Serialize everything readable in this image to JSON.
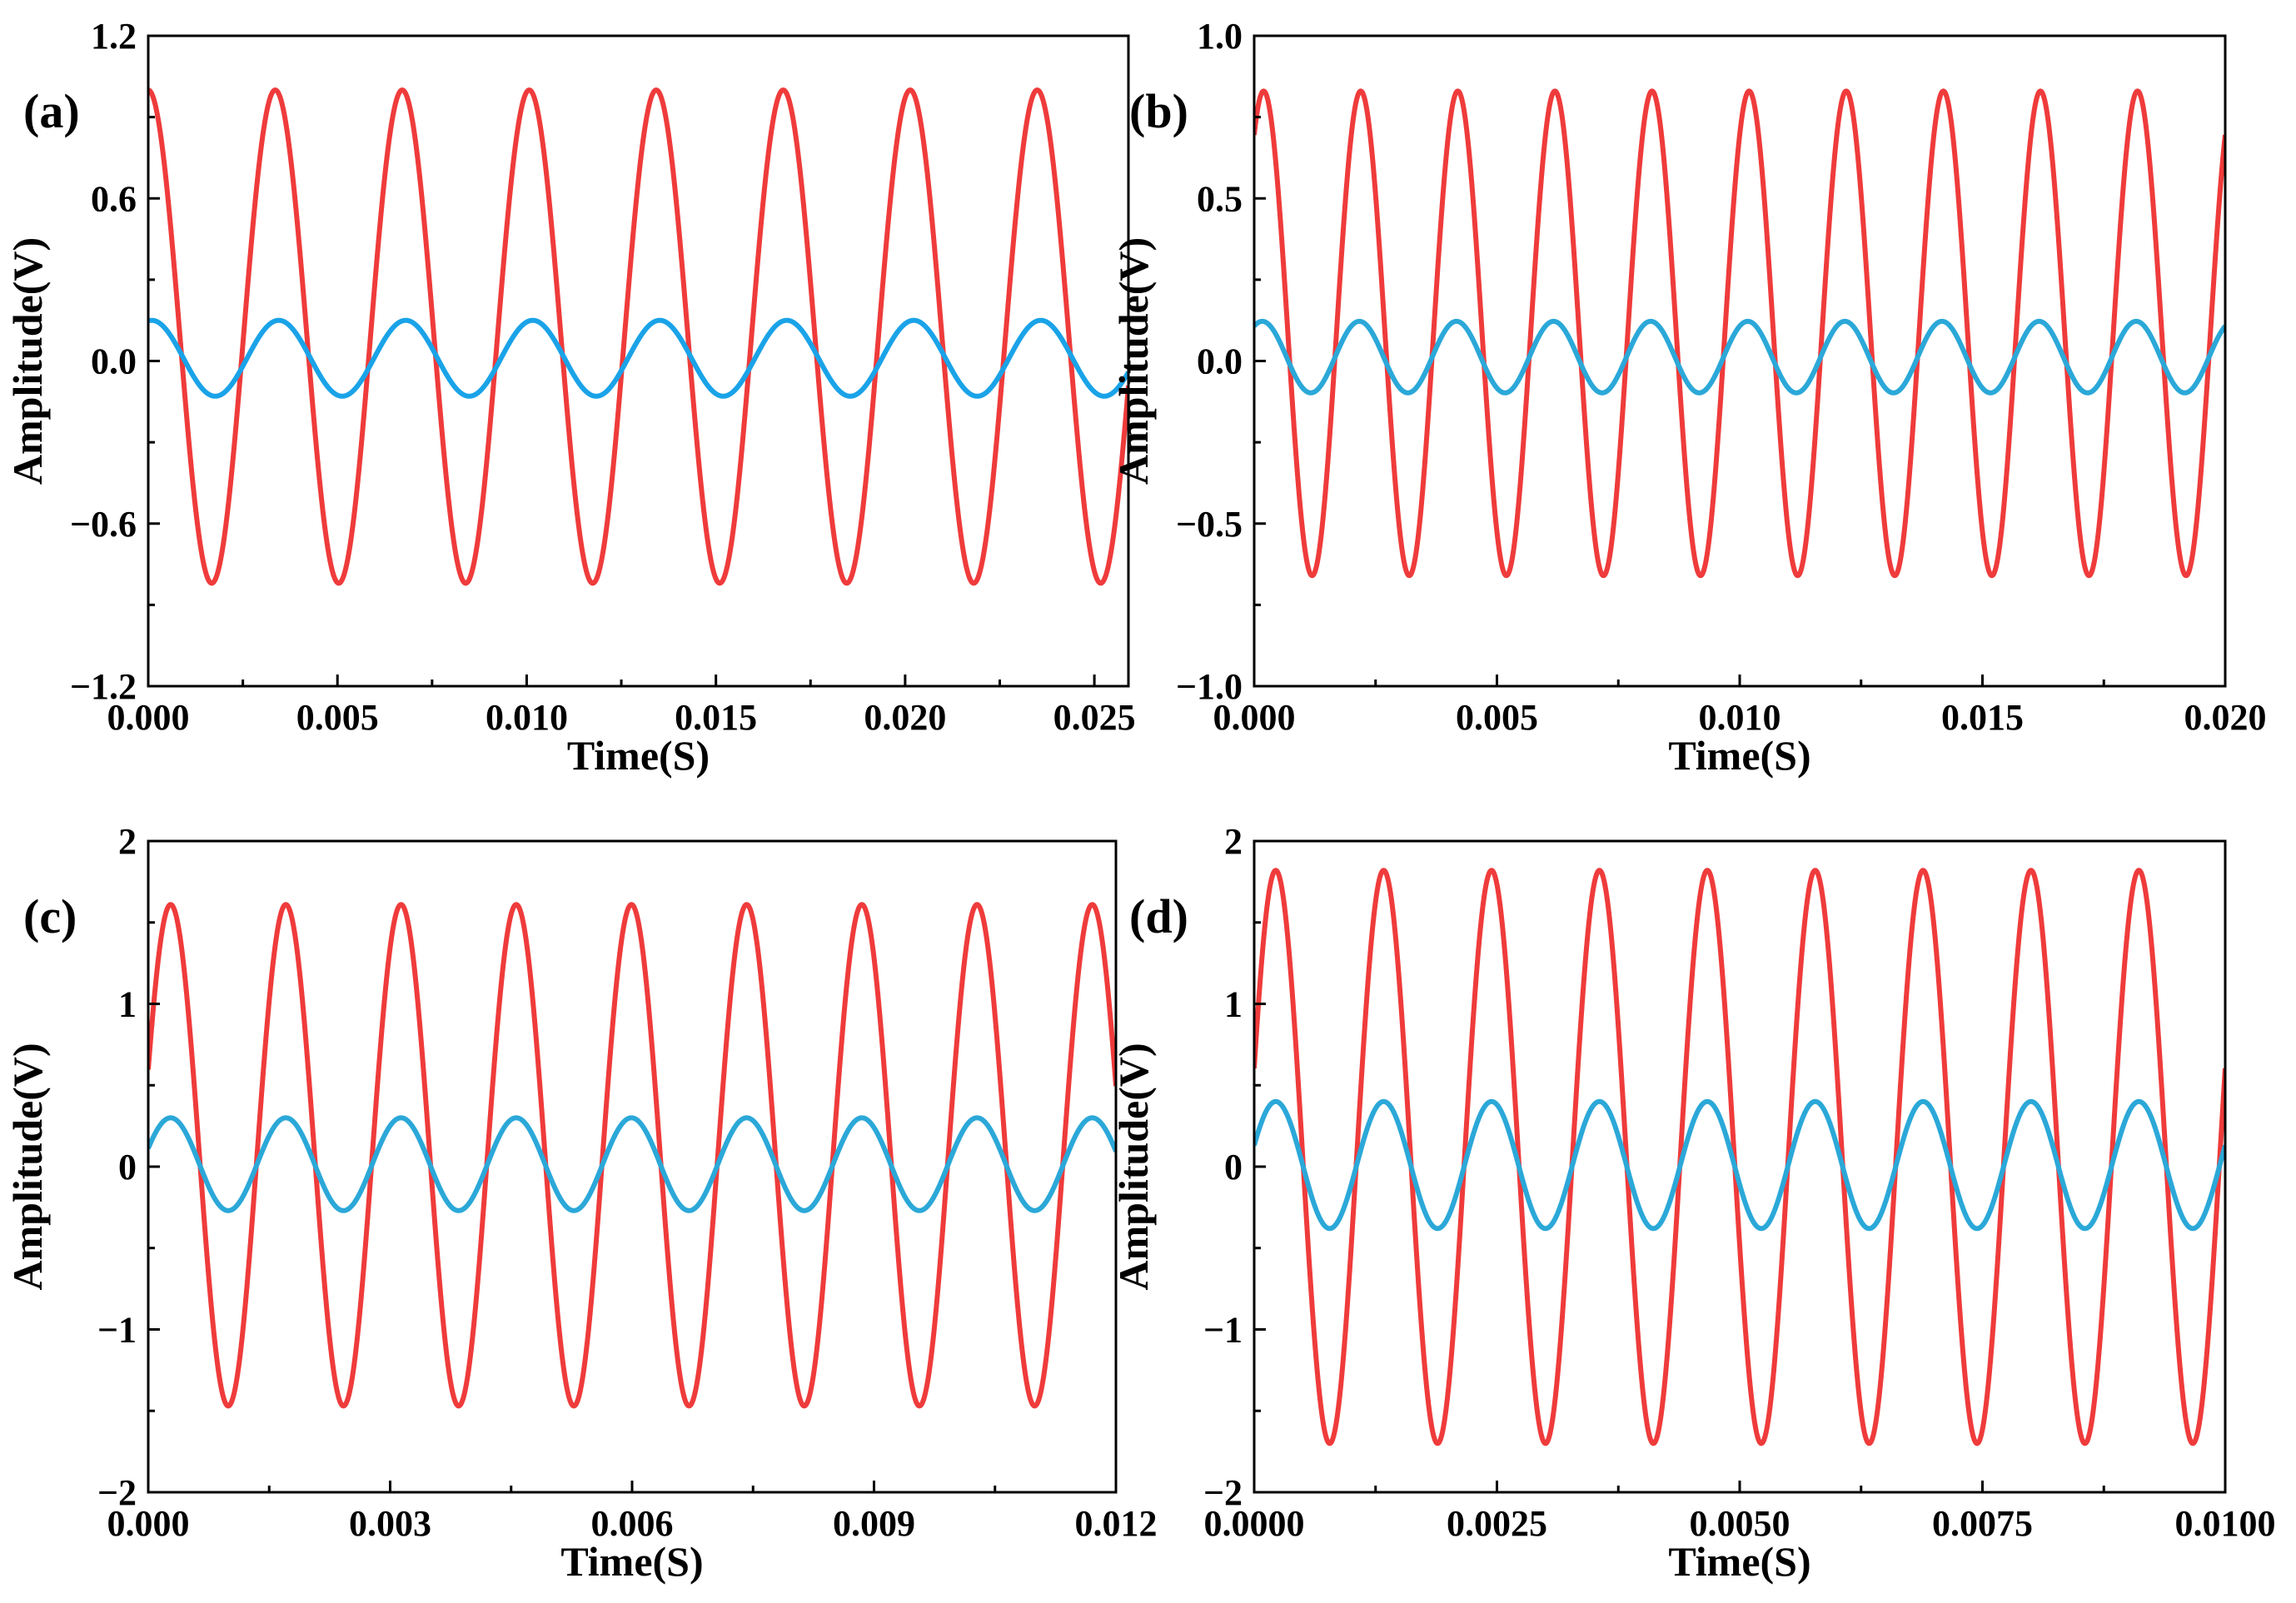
{
  "chart_data": [
    {
      "type": "line",
      "panel_label": "(a)",
      "xlabel": "Time(S)",
      "ylabel": "Amplitude(V)",
      "xlim": [
        0,
        0.0259
      ],
      "ylim": [
        -1.2,
        1.2
      ],
      "xticks": [
        0.0,
        0.005,
        0.01,
        0.015,
        0.02,
        0.025
      ],
      "xtick_labels": [
        "0.000",
        "0.005",
        "0.010",
        "0.015",
        "0.020",
        "0.025"
      ],
      "yticks": [
        -1.2,
        -0.6,
        0.0,
        0.6,
        1.2
      ],
      "ytick_labels": [
        "−1.2",
        "−0.6",
        "0.0",
        "0.6",
        "1.2"
      ],
      "series": [
        {
          "name": "red",
          "color": "#ef3b3b",
          "frequency_hz": 298,
          "amplitude": 0.91,
          "offset": 0.09,
          "phase_deg": 90
        },
        {
          "name": "blue",
          "color": "#1aa3e8",
          "frequency_hz": 298,
          "amplitude": 0.14,
          "offset": 0.01,
          "phase_deg": 80
        }
      ]
    },
    {
      "type": "line",
      "panel_label": "(b)",
      "xlabel": "Time(S)",
      "ylabel": "Amplitude(V)",
      "xlim": [
        0,
        0.02
      ],
      "ylim": [
        -1.0,
        1.0
      ],
      "xticks": [
        0.0,
        0.005,
        0.01,
        0.015,
        0.02
      ],
      "xtick_labels": [
        "0.000",
        "0.005",
        "0.010",
        "0.015",
        "0.020"
      ],
      "yticks": [
        -1.0,
        -0.5,
        0.0,
        0.5,
        1.0
      ],
      "ytick_labels": [
        "−1.0",
        "−0.5",
        "0.0",
        "0.5",
        "1.0"
      ],
      "series": [
        {
          "name": "red",
          "color": "#ef3b3b",
          "frequency_hz": 500,
          "amplitude": 0.745,
          "offset": 0.085,
          "phase_deg": 55
        },
        {
          "name": "blue",
          "color": "#2ba8d8",
          "frequency_hz": 500,
          "amplitude": 0.11,
          "offset": 0.012,
          "phase_deg": 60
        }
      ]
    },
    {
      "type": "line",
      "panel_label": "(c)",
      "xlabel": "Time(S)",
      "ylabel": "Amplitude(V)",
      "xlim": [
        0,
        0.012
      ],
      "ylim": [
        -2,
        2
      ],
      "xticks": [
        0.0,
        0.003,
        0.006,
        0.009,
        0.012
      ],
      "xtick_labels": [
        "0.000",
        "0.003",
        "0.006",
        "0.009",
        "0.012"
      ],
      "yticks": [
        -2,
        -1,
        0,
        1,
        2
      ],
      "ytick_labels": [
        "−2",
        "−1",
        "0",
        "1",
        "2"
      ],
      "series": [
        {
          "name": "red",
          "color": "#ef3b3b",
          "frequency_hz": 700,
          "amplitude": 1.54,
          "offset": 0.07,
          "phase_deg": 20
        },
        {
          "name": "blue",
          "color": "#2ba8d8",
          "frequency_hz": 700,
          "amplitude": 0.285,
          "offset": 0.015,
          "phase_deg": 20
        }
      ]
    },
    {
      "type": "line",
      "panel_label": "(d)",
      "xlabel": "Time(S)",
      "ylabel": "Amplitude(V)",
      "xlim": [
        0,
        0.01
      ],
      "ylim": [
        -2,
        2
      ],
      "xticks": [
        0.0,
        0.0025,
        0.005,
        0.0075,
        0.01
      ],
      "xtick_labels": [
        "0.0000",
        "0.0025",
        "0.0050",
        "0.0075",
        "0.0100"
      ],
      "yticks": [
        -2,
        -1,
        0,
        1,
        2
      ],
      "ytick_labels": [
        "−2",
        "−1",
        "0",
        "1",
        "2"
      ],
      "series": [
        {
          "name": "red",
          "color": "#ef3b3b",
          "frequency_hz": 900,
          "amplitude": 1.76,
          "offset": 0.06,
          "phase_deg": 18
        },
        {
          "name": "blue",
          "color": "#2ba8d8",
          "frequency_hz": 900,
          "amplitude": 0.39,
          "offset": 0.01,
          "phase_deg": 18
        }
      ]
    }
  ]
}
